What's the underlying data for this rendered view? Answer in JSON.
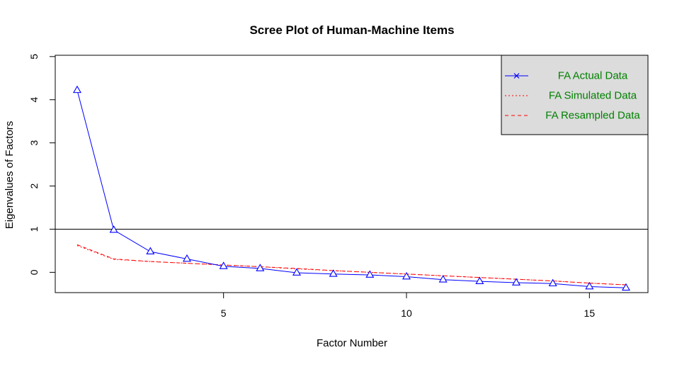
{
  "chart_data": {
    "type": "line",
    "title": "Scree Plot of Human-Machine Items",
    "xlabel": "Factor Number",
    "ylabel": "Eigenvalues of Factors",
    "xlim": [
      0.4,
      16.6
    ],
    "ylim": [
      -0.47,
      5.03
    ],
    "x_ticks": [
      5,
      10,
      15
    ],
    "y_ticks": [
      0,
      1,
      2,
      3,
      4,
      5
    ],
    "grid": false,
    "reference_line": {
      "y": 1,
      "color": "#000000"
    },
    "legend": {
      "position": "top-right",
      "background": "#dcdcdc",
      "entries": [
        {
          "label": "FA  Actual Data",
          "style": "solid",
          "marker": "x",
          "color": "#0000ff"
        },
        {
          "label": "FA  Simulated Data",
          "style": "dotted",
          "marker": "",
          "color": "#ff0000"
        },
        {
          "label": "FA  Resampled Data",
          "style": "dashed",
          "marker": "",
          "color": "#ff0000"
        }
      ],
      "text_color": "#008000"
    },
    "x": [
      1,
      2,
      3,
      4,
      5,
      6,
      7,
      8,
      9,
      10,
      11,
      12,
      13,
      14,
      15,
      16
    ],
    "series": [
      {
        "name": "FA  Actual Data",
        "color": "#0000ff",
        "style": "solid",
        "marker": "triangle",
        "values": [
          4.22,
          0.98,
          0.48,
          0.31,
          0.14,
          0.09,
          -0.01,
          -0.04,
          -0.06,
          -0.1,
          -0.17,
          -0.21,
          -0.24,
          -0.26,
          -0.33,
          -0.36
        ]
      },
      {
        "name": "FA  Simulated Data",
        "color": "#ff0000",
        "style": "dotted",
        "marker": "",
        "values": [
          0.62,
          0.3,
          0.25,
          0.21,
          0.17,
          0.13,
          0.08,
          0.04,
          0.0,
          -0.04,
          -0.08,
          -0.12,
          -0.16,
          -0.2,
          -0.25,
          -0.29
        ]
      },
      {
        "name": "FA  Resampled Data",
        "color": "#ff0000",
        "style": "dashed",
        "marker": "",
        "values": [
          0.64,
          0.31,
          0.25,
          0.21,
          0.17,
          0.13,
          0.09,
          0.04,
          0.0,
          -0.04,
          -0.08,
          -0.12,
          -0.16,
          -0.2,
          -0.25,
          -0.29
        ]
      }
    ]
  }
}
